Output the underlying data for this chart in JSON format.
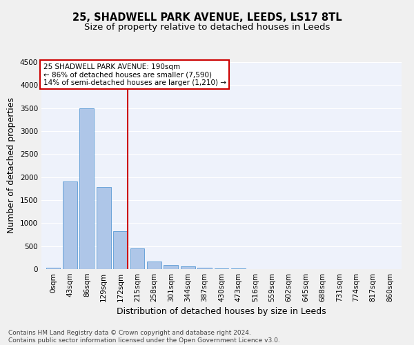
{
  "title1": "25, SHADWELL PARK AVENUE, LEEDS, LS17 8TL",
  "title2": "Size of property relative to detached houses in Leeds",
  "xlabel": "Distribution of detached houses by size in Leeds",
  "ylabel": "Number of detached properties",
  "footnote": "Contains HM Land Registry data © Crown copyright and database right 2024.\nContains public sector information licensed under the Open Government Licence v3.0.",
  "bar_labels": [
    "0sqm",
    "43sqm",
    "86sqm",
    "129sqm",
    "172sqm",
    "215sqm",
    "258sqm",
    "301sqm",
    "344sqm",
    "387sqm",
    "430sqm",
    "473sqm",
    "516sqm",
    "559sqm",
    "602sqm",
    "645sqm",
    "688sqm",
    "731sqm",
    "774sqm",
    "817sqm",
    "860sqm"
  ],
  "bar_values": [
    30,
    1910,
    3500,
    1780,
    830,
    450,
    165,
    90,
    55,
    35,
    20,
    15,
    0,
    0,
    0,
    0,
    0,
    0,
    0,
    0,
    0
  ],
  "bar_color": "#aec6e8",
  "bar_edge_color": "#5b9bd5",
  "ylim": [
    0,
    4500
  ],
  "yticks": [
    0,
    500,
    1000,
    1500,
    2000,
    2500,
    3000,
    3500,
    4000,
    4500
  ],
  "vline_x": 4.42,
  "annotation_text": "25 SHADWELL PARK AVENUE: 190sqm\n← 86% of detached houses are smaller (7,590)\n14% of semi-detached houses are larger (1,210) →",
  "annotation_box_color": "#ffffff",
  "annotation_border_color": "#cc0000",
  "vline_color": "#cc0000",
  "background_color": "#eef2fb",
  "grid_color": "#ffffff",
  "title1_fontsize": 10.5,
  "title2_fontsize": 9.5,
  "tick_fontsize": 7.5,
  "label_fontsize": 9,
  "footnote_fontsize": 6.5
}
